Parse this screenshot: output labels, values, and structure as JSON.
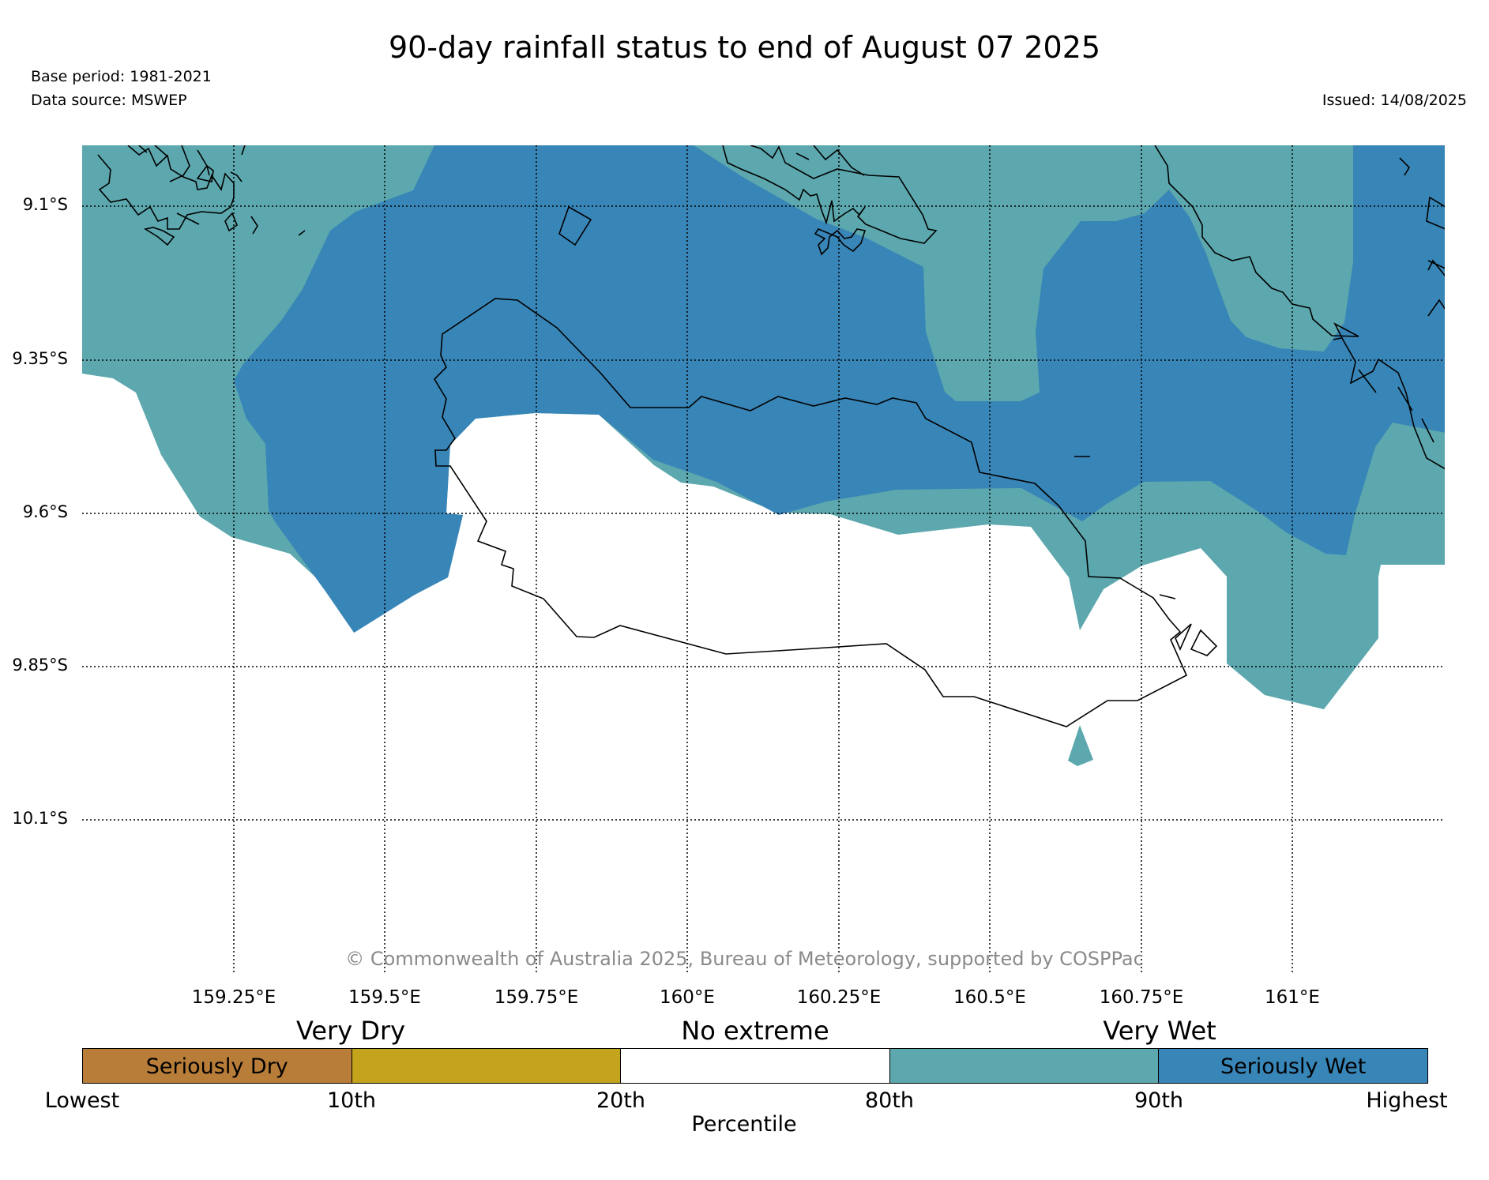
{
  "title": "90-day rainfall status to end of August 07 2025",
  "base_period": "Base period: 1981-2021",
  "data_source": "Data source: MSWEP",
  "issued": "Issued: 14/08/2025",
  "copyright": "© Commonwealth of Australia 2025, Bureau of Meteorology, supported by COSPPac",
  "map": {
    "lat_labels": [
      "9.1°S",
      "9.35°S",
      "9.6°S",
      "9.85°S",
      "10.1°S"
    ],
    "lon_labels": [
      "159.25°E",
      "159.5°E",
      "159.75°E",
      "160°E",
      "160.25°E",
      "160.5°E",
      "160.75°E",
      "161°E"
    ],
    "grid": "dotted",
    "colors": {
      "very_wet": "#5ca8ae",
      "seriously_wet": "#3885b7",
      "coastline": "#000000"
    }
  },
  "legend": {
    "categories": [
      "Very Dry",
      "No extreme",
      "Very Wet"
    ],
    "segments": [
      {
        "label": "Seriously Dry",
        "color": "#b87d38"
      },
      {
        "label": "",
        "color": "#c4a41c"
      },
      {
        "label": "",
        "color": "#ffffff"
      },
      {
        "label": "",
        "color": "#5ca8ae"
      },
      {
        "label": "Seriously Wet",
        "color": "#3885b7"
      }
    ],
    "ticks": [
      "Lowest",
      "10th",
      "20th",
      "80th",
      "90th",
      "Highest"
    ],
    "axis_label": "Percentile"
  }
}
